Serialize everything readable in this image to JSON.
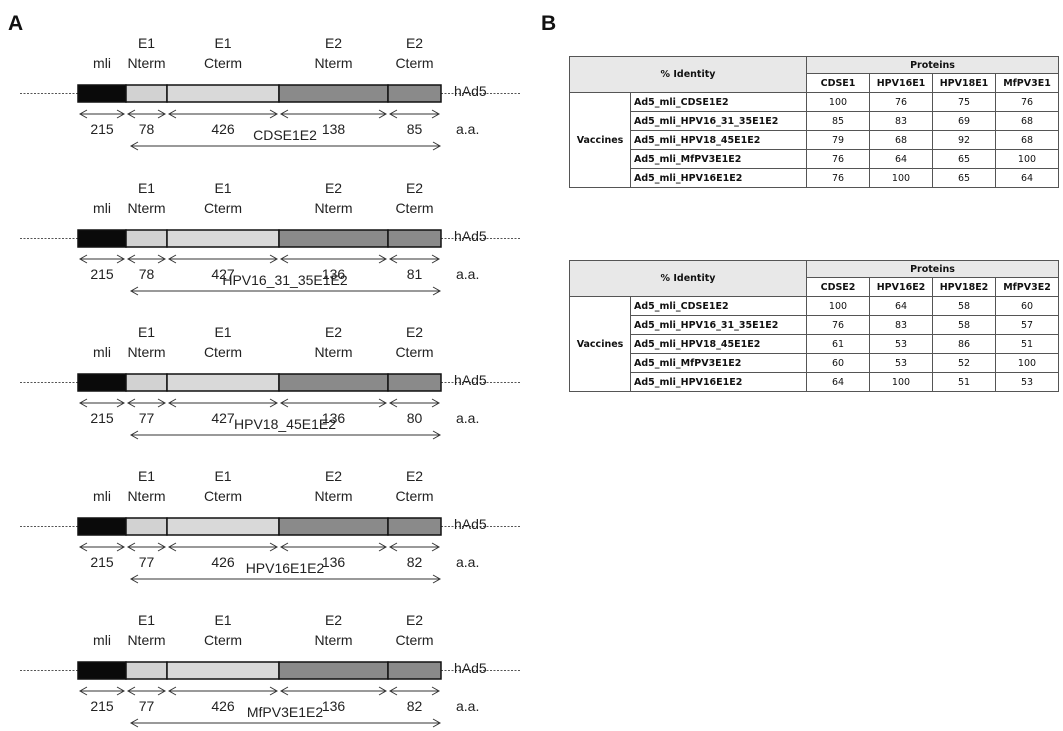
{
  "panels": {
    "a": "A",
    "b": "B"
  },
  "constructs": [
    {
      "name": "CDSE1E2",
      "segments": [
        {
          "label": "mli",
          "aa": "215"
        },
        {
          "label": "E1 Nterm",
          "aa": "78"
        },
        {
          "label": "E1 Cterm",
          "aa": "426"
        },
        {
          "label": "E2 Nterm",
          "aa": "138"
        },
        {
          "label": "E2 Cterm",
          "aa": "85"
        }
      ],
      "vector": "hAd5",
      "unit": "a.a."
    },
    {
      "name": "HPV16_31_35E1E2",
      "segments": [
        {
          "label": "mli",
          "aa": "215"
        },
        {
          "label": "E1 Nterm",
          "aa": "78"
        },
        {
          "label": "E1 Cterm",
          "aa": "427"
        },
        {
          "label": "E2 Nterm",
          "aa": "136"
        },
        {
          "label": "E2 Cterm",
          "aa": "81"
        }
      ],
      "vector": "hAd5",
      "unit": "a.a."
    },
    {
      "name": "HPV18_45E1E2",
      "segments": [
        {
          "label": "mli",
          "aa": "215"
        },
        {
          "label": "E1 Nterm",
          "aa": "77"
        },
        {
          "label": "E1 Cterm",
          "aa": "427"
        },
        {
          "label": "E2 Nterm",
          "aa": "136"
        },
        {
          "label": "E2 Cterm",
          "aa": "80"
        }
      ],
      "vector": "hAd5",
      "unit": "a.a."
    },
    {
      "name": "HPV16E1E2",
      "segments": [
        {
          "label": "mli",
          "aa": "215"
        },
        {
          "label": "E1 Nterm",
          "aa": "77"
        },
        {
          "label": "E1 Cterm",
          "aa": "426"
        },
        {
          "label": "E2 Nterm",
          "aa": "136"
        },
        {
          "label": "E2 Cterm",
          "aa": "82"
        }
      ],
      "vector": "hAd5",
      "unit": "a.a."
    },
    {
      "name": "MfPV3E1E2",
      "segments": [
        {
          "label": "mli",
          "aa": "215"
        },
        {
          "label": "E1 Nterm",
          "aa": "77"
        },
        {
          "label": "E1 Cterm",
          "aa": "426"
        },
        {
          "label": "E2 Nterm",
          "aa": "136"
        },
        {
          "label": "E2 Cterm",
          "aa": "82"
        }
      ],
      "vector": "hAd5",
      "unit": "a.a."
    }
  ],
  "segment_colors": [
    "#0a0a0a",
    "#d2d2d2",
    "#d9d9d9",
    "#8a8a8a",
    "#8a8a8a"
  ],
  "tables": [
    {
      "corner": "% Identity",
      "group": "Proteins",
      "row_group": "Vaccines",
      "columns": [
        "CDSE1",
        "HPV16E1",
        "HPV18E1",
        "MfPV3E1"
      ],
      "rows": [
        {
          "name": "Ad5_mli_CDSE1E2",
          "values": [
            "100",
            "76",
            "75",
            "76"
          ]
        },
        {
          "name": "Ad5_mli_HPV16_31_35E1E2",
          "values": [
            "85",
            "83",
            "69",
            "68"
          ]
        },
        {
          "name": "Ad5_mli_HPV18_45E1E2",
          "values": [
            "79",
            "68",
            "92",
            "68"
          ]
        },
        {
          "name": "Ad5_mli_MfPV3E1E2",
          "values": [
            "76",
            "64",
            "65",
            "100"
          ]
        },
        {
          "name": "Ad5_mli_HPV16E1E2",
          "values": [
            "76",
            "100",
            "65",
            "64"
          ]
        }
      ]
    },
    {
      "corner": "% Identity",
      "group": "Proteins",
      "row_group": "Vaccines",
      "columns": [
        "CDSE2",
        "HPV16E2",
        "HPV18E2",
        "MfPV3E2"
      ],
      "rows": [
        {
          "name": "Ad5_mli_CDSE1E2",
          "values": [
            "100",
            "64",
            "58",
            "60"
          ]
        },
        {
          "name": "Ad5_mli_HPV16_31_35E1E2",
          "values": [
            "76",
            "83",
            "58",
            "57"
          ]
        },
        {
          "name": "Ad5_mli_HPV18_45E1E2",
          "values": [
            "61",
            "53",
            "86",
            "51"
          ]
        },
        {
          "name": "Ad5_mli_MfPV3E1E2",
          "values": [
            "60",
            "53",
            "52",
            "100"
          ]
        },
        {
          "name": "Ad5_mli_HPV16E1E2",
          "values": [
            "64",
            "100",
            "51",
            "53"
          ]
        }
      ]
    }
  ]
}
